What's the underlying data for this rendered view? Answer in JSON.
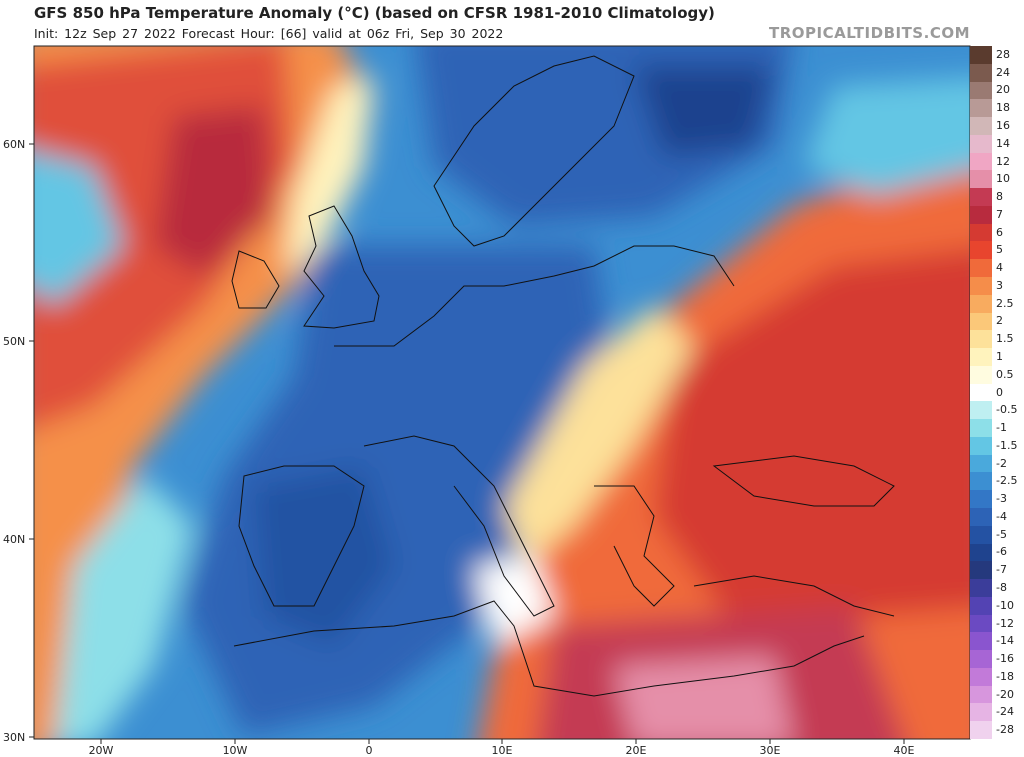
{
  "header": {
    "title": "GFS 850 hPa Temperature Anomaly (°C) (based on CFSR 1981-2010 Climatology)",
    "subtitle": "Init: 12z Sep 27 2022   Forecast Hour: [66]   valid at 06z Fri, Sep 30 2022",
    "brand": "TROPICALTIDBITS.COM"
  },
  "axes": {
    "lat_labels": [
      "60N",
      "50N",
      "40N",
      "30N"
    ],
    "lon_labels": [
      "20W",
      "10W",
      "0",
      "10E",
      "20E",
      "30E",
      "40E"
    ]
  },
  "legend": {
    "labels": [
      "28",
      "24",
      "20",
      "18",
      "16",
      "14",
      "12",
      "10",
      "8",
      "7",
      "6",
      "5",
      "4",
      "3",
      "2.5",
      "2",
      "1.5",
      "1",
      "0.5",
      "0",
      "-0.5",
      "-1",
      "-1.5",
      "-2",
      "-2.5",
      "-3",
      "-4",
      "-5",
      "-6",
      "-7",
      "-8",
      "-10",
      "-12",
      "-14",
      "-16",
      "-18",
      "-20",
      "-24",
      "-28"
    ],
    "colors": [
      "#5a3b2e",
      "#7b5a4e",
      "#9a7a72",
      "#b89a96",
      "#d1b7b7",
      "#e6b9cc",
      "#f0a6c4",
      "#e58fa9",
      "#c43a53",
      "#b82b3e",
      "#d53a32",
      "#e8452e",
      "#f06a3a",
      "#f58d4a",
      "#f8ab5f",
      "#fbc879",
      "#fde19a",
      "#fff3bd",
      "#fffce0",
      "#ffffff",
      "#bfeff1",
      "#8ddfe8",
      "#63c6e4",
      "#4aa9dc",
      "#3c8fd2",
      "#3377c6",
      "#2d63b6",
      "#2452a3",
      "#1f438e",
      "#25397d",
      "#3b3d9a",
      "#5343b3",
      "#6b4ac2",
      "#8a55cf",
      "#a765d5",
      "#c27ad9",
      "#d796dd",
      "#e6b4e4",
      "#f0d2ee"
    ]
  },
  "map": {
    "region": "Europe, North Atlantic, North Africa",
    "projection_lat_range": [
      30,
      65
    ],
    "projection_lon_range": [
      -25,
      45
    ]
  }
}
